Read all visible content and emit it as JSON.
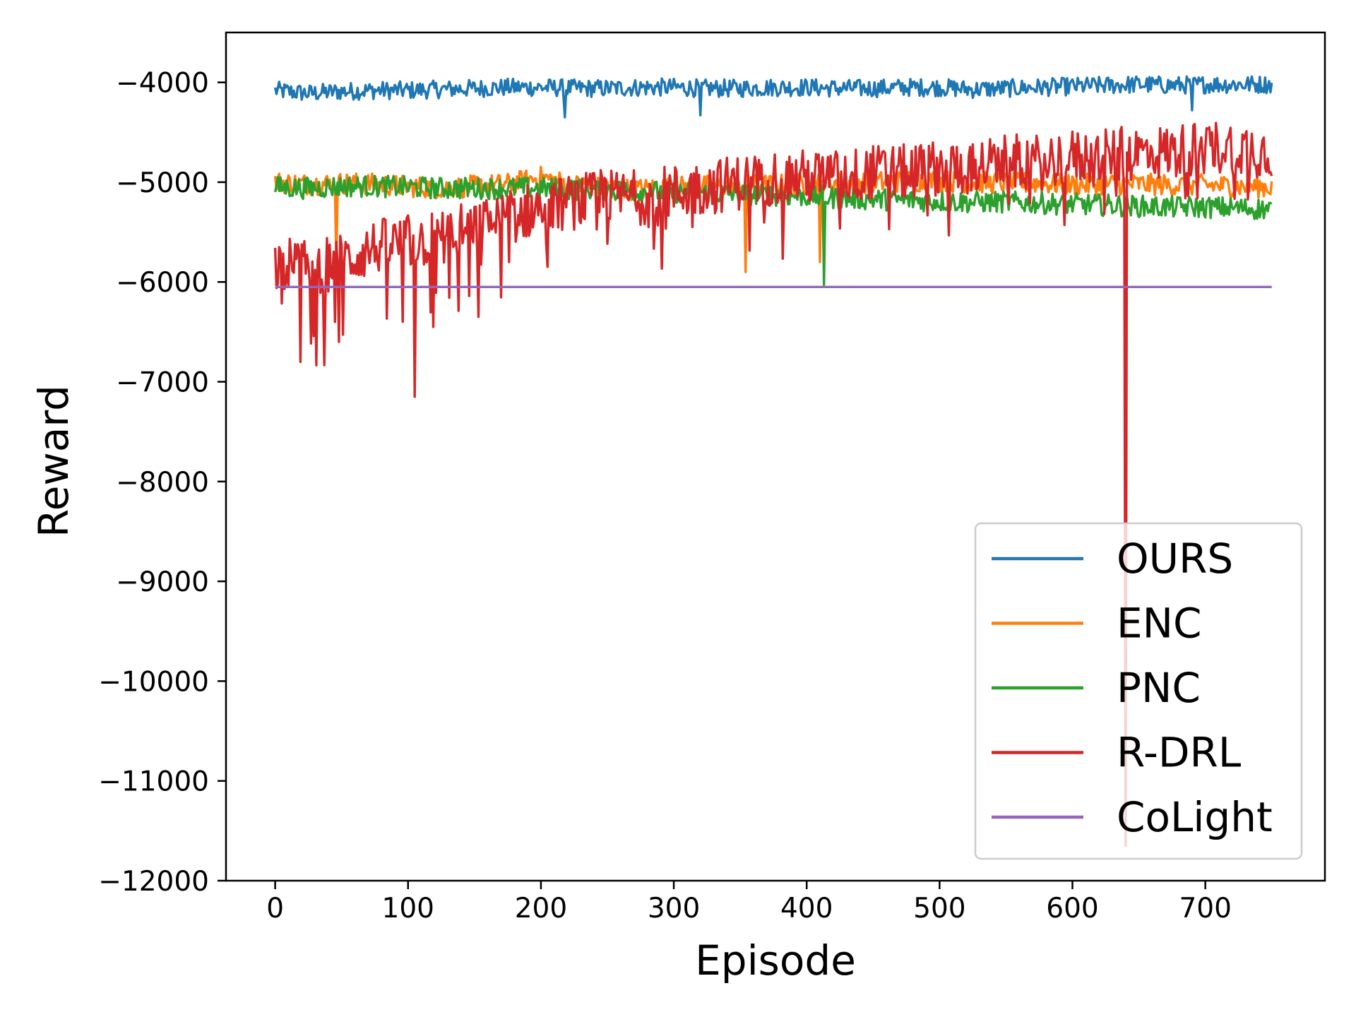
{
  "chart_data": {
    "type": "line",
    "xlabel": "Episode",
    "ylabel": "Reward",
    "xlim": [
      -37,
      790
    ],
    "ylim": [
      -12000,
      -3500
    ],
    "xticks": [
      0,
      100,
      200,
      300,
      400,
      500,
      600,
      700
    ],
    "yticks": [
      -4000,
      -5000,
      -6000,
      -7000,
      -8000,
      -9000,
      -10000,
      -11000,
      -12000
    ],
    "xtick_labels": [
      "0",
      "100",
      "200",
      "300",
      "400",
      "500",
      "600",
      "700"
    ],
    "ytick_labels": [
      "−4000",
      "−5000",
      "−6000",
      "−7000",
      "−8000",
      "−9000",
      "−10000",
      "−11000",
      "−12000"
    ],
    "grid": false,
    "legend_position": "lower right",
    "series": [
      {
        "name": "OURS",
        "color": "#1f77b4",
        "x": [
          0,
          25,
          50,
          75,
          100,
          125,
          150,
          175,
          200,
          225,
          250,
          275,
          300,
          325,
          350,
          375,
          400,
          425,
          450,
          475,
          500,
          525,
          550,
          575,
          600,
          625,
          650,
          675,
          700,
          725,
          750
        ],
        "y": [
          -4080,
          -4110,
          -4090,
          -4080,
          -4080,
          -4070,
          -4060,
          -4050,
          -4050,
          -4060,
          -4060,
          -4050,
          -4050,
          -4060,
          -4060,
          -4050,
          -4050,
          -4060,
          -4060,
          -4050,
          -4050,
          -4070,
          -4060,
          -4050,
          -4040,
          -4030,
          -4020,
          -4030,
          -4020,
          -4020,
          -4020
        ],
        "dips": [
          [
            218,
            -4350
          ],
          [
            320,
            -4330
          ],
          [
            690,
            -4280
          ]
        ]
      },
      {
        "name": "ENC",
        "color": "#ff7f0e",
        "x": [
          0,
          25,
          50,
          75,
          100,
          125,
          150,
          175,
          200,
          225,
          250,
          275,
          300,
          325,
          350,
          375,
          400,
          425,
          450,
          475,
          500,
          525,
          550,
          575,
          600,
          625,
          650,
          675,
          700,
          725,
          750
        ],
        "y": [
          -5000,
          -5020,
          -5010,
          -5020,
          -5040,
          -5060,
          -5040,
          -5020,
          -4950,
          -5030,
          -5060,
          -5070,
          -5050,
          -5040,
          -5030,
          -5030,
          -5020,
          -5000,
          -5000,
          -4990,
          -4990,
          -5000,
          -5010,
          -5010,
          -5030,
          -5020,
          -5020,
          -5030,
          -5030,
          -5040,
          -5050
        ],
        "dips": [
          [
            46,
            -5800
          ],
          [
            354,
            -5900
          ],
          [
            410,
            -5800
          ]
        ]
      },
      {
        "name": "PNC",
        "color": "#2ca02c",
        "x": [
          0,
          25,
          50,
          75,
          100,
          125,
          150,
          175,
          200,
          225,
          250,
          275,
          300,
          325,
          350,
          375,
          400,
          425,
          450,
          475,
          500,
          525,
          550,
          575,
          600,
          625,
          650,
          675,
          700,
          725,
          750
        ],
        "y": [
          -5050,
          -5060,
          -5040,
          -5040,
          -5050,
          -5060,
          -5060,
          -5060,
          -5060,
          -5070,
          -5080,
          -5090,
          -5100,
          -5110,
          -5120,
          -5130,
          -5140,
          -5160,
          -5170,
          -5180,
          -5190,
          -5200,
          -5200,
          -5210,
          -5220,
          -5230,
          -5240,
          -5250,
          -5250,
          -5260,
          -5270
        ],
        "dips": [
          [
            413,
            -6030
          ]
        ]
      },
      {
        "name": "R-DRL",
        "color": "#d62728",
        "x": [
          0,
          25,
          50,
          75,
          100,
          125,
          150,
          175,
          200,
          225,
          250,
          275,
          300,
          325,
          350,
          375,
          400,
          425,
          450,
          475,
          500,
          525,
          550,
          575,
          600,
          625,
          650,
          675,
          700,
          725,
          750
        ],
        "y": [
          -5800,
          -5850,
          -5800,
          -5650,
          -5600,
          -5550,
          -5450,
          -5350,
          -5250,
          -5200,
          -5150,
          -5150,
          -5100,
          -5050,
          -5000,
          -4950,
          -4950,
          -4950,
          -4900,
          -4900,
          -4850,
          -4850,
          -4800,
          -4800,
          -4750,
          -4750,
          -4700,
          -4700,
          -4650,
          -4650,
          -4700
        ],
        "dips": [
          [
            19,
            -6800
          ],
          [
            48,
            -6600
          ],
          [
            105,
            -7150
          ],
          [
            119,
            -6450
          ],
          [
            153,
            -6350
          ],
          [
            640,
            -11650
          ]
        ]
      },
      {
        "name": "CoLight",
        "color": "#9467bd",
        "x": [
          0,
          750
        ],
        "y": [
          -6050,
          -6050
        ],
        "dips": []
      }
    ]
  }
}
